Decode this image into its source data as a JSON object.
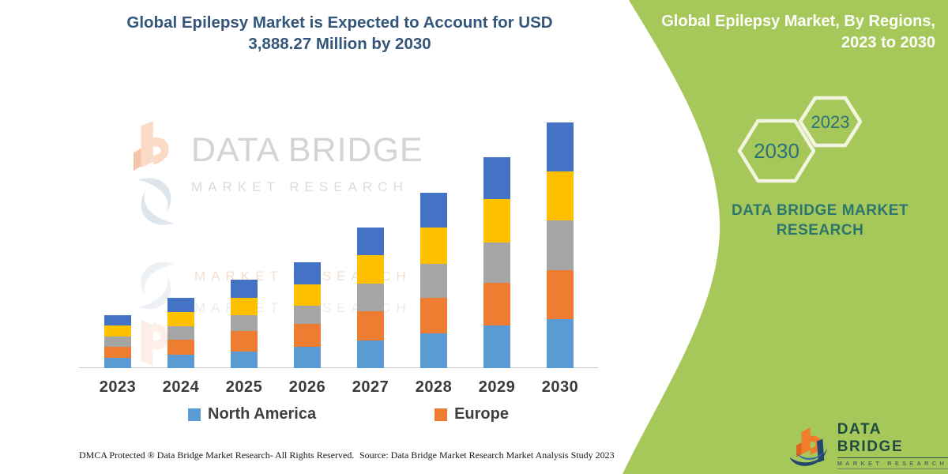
{
  "left_panel": {
    "title_line1": "Global Epilepsy Market is Expected to Account for USD",
    "title_line2": "3,888.27 Million by 2030",
    "watermark": {
      "brand": "DATA BRIDGE",
      "sub": "MARKET RESEARCH"
    },
    "footer_left": "DMCA Protected ® Data Bridge Market Research-  All Rights Reserved.",
    "footer_right": "Source: Data Bridge Market Research  Market Analysis Study 2023"
  },
  "right_panel": {
    "heading_line1": "Global Epilepsy Market, By Regions,",
    "heading_line2": "2023 to 2030",
    "hexagon_large_label": "2030",
    "hexagon_small_label": "2023",
    "brand_line1": "DATA BRIDGE MARKET",
    "brand_line2": "RESEARCH",
    "corner_logo_brand": "DATA BRIDGE",
    "corner_logo_sub": "MARKET RESEARCH",
    "background_color": "#a6c75a",
    "text_color": "#2d766e"
  },
  "chart_data": {
    "type": "bar",
    "stacked": true,
    "title": "Global Epilepsy Market is Expected to Account for USD 3,888.27 Million by 2030",
    "categories": [
      "2023",
      "2024",
      "2025",
      "2026",
      "2027",
      "2028",
      "2029",
      "2030"
    ],
    "series": [
      {
        "name": "North America",
        "color": "#5B9BD5",
        "values": [
          166,
          213,
          259,
          343,
          438,
          550,
          679,
          779
        ]
      },
      {
        "name": "Europe",
        "color": "#ED7D31",
        "values": [
          175,
          238,
          325,
          354,
          467,
          563,
          668,
          772
        ]
      },
      {
        "name": "",
        "color": "#A5A5A5",
        "values": [
          154,
          216,
          250,
          291,
          430,
          534,
          645,
          784
        ]
      },
      {
        "name": "",
        "color": "#FFC000",
        "values": [
          179,
          221,
          279,
          343,
          458,
          575,
          684,
          783
        ]
      },
      {
        "name": "",
        "color": "#4472C4",
        "values": [
          163,
          221,
          284,
          345,
          438,
          558,
          667,
          768
        ]
      }
    ],
    "values_unit": "USD Million (estimated from bar heights; 2030 total ≈ 3,888.27)",
    "totals_estimated": [
      837,
      1109,
      1397,
      1676,
      2231,
      2780,
      3343,
      3886
    ],
    "legend": [
      {
        "label": "North America",
        "color": "#5B9BD5"
      },
      {
        "label": "Europe",
        "color": "#ED7D31"
      }
    ],
    "legend_position": "bottom",
    "grid": false,
    "y_axis_visible": false,
    "x_axis_line_color": "#c8c8c8"
  }
}
